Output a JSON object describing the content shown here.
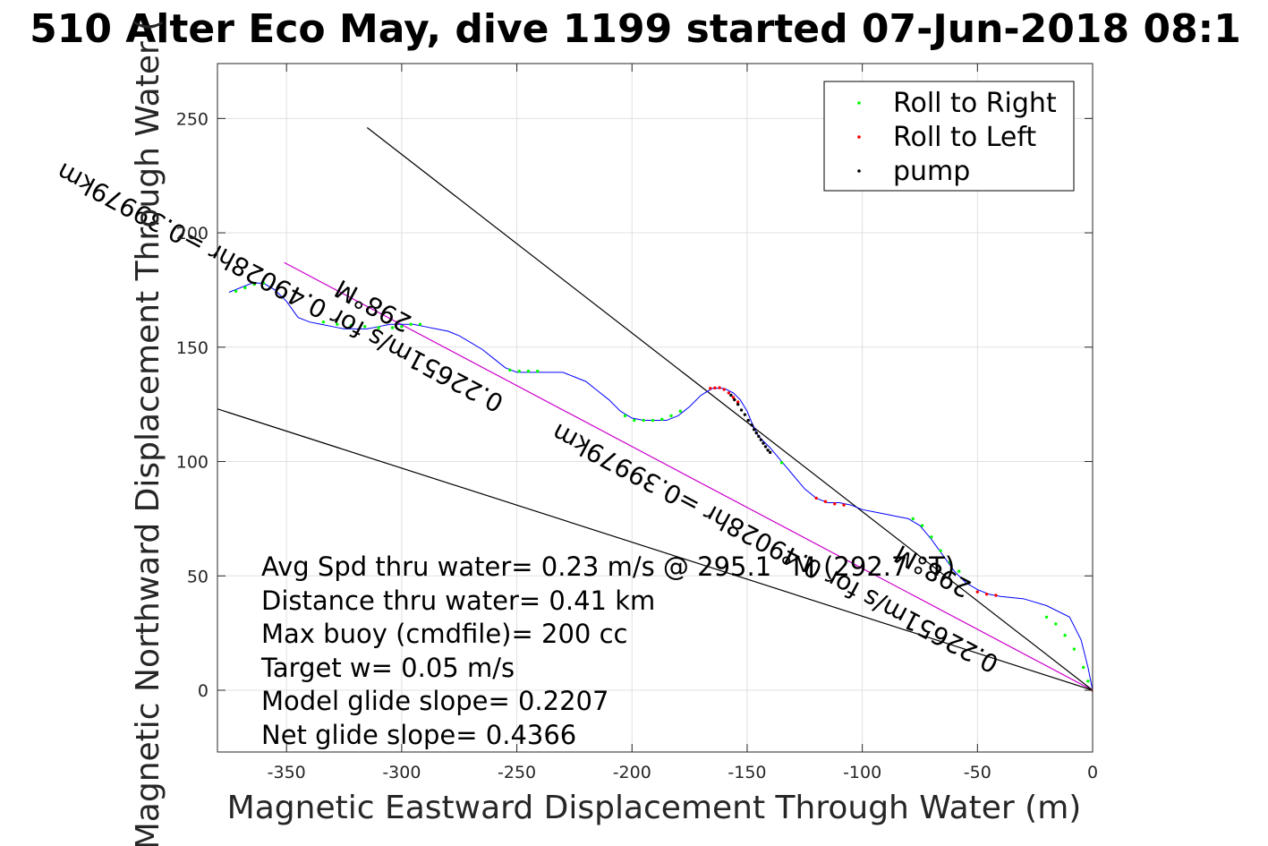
{
  "chart_data": {
    "type": "line",
    "title": "510 Alter Eco May, dive 1199 started 07-Jun-2018 08:1",
    "xlabel": "Magnetic Eastward Displacement Through Water (m)",
    "ylabel": "Magnetic Northward Displacement Through Water (",
    "xlim": [
      -380,
      0
    ],
    "ylim": [
      -27,
      274
    ],
    "xticks": [
      -350,
      -300,
      -250,
      -200,
      -150,
      -100,
      -50,
      0
    ],
    "yticks": [
      0,
      50,
      100,
      150,
      200,
      250
    ],
    "grid": true,
    "legend_position": "top-right",
    "legend": [
      {
        "name": "Roll to Right",
        "color": "#00ff00"
      },
      {
        "name": "Roll to Left",
        "color": "#ff0000"
      },
      {
        "name": "pump",
        "color": "#000000"
      }
    ],
    "track": {
      "color": "#0000ff",
      "x": [
        0,
        -2,
        -5,
        -10,
        -20,
        -30,
        -40,
        -45,
        -50,
        -55,
        -60,
        -65,
        -70,
        -75,
        -80,
        -85,
        -90,
        -95,
        -100,
        -105,
        -110,
        -115,
        -120,
        -125,
        -130,
        -135,
        -140,
        -145,
        -148,
        -150,
        -153,
        -156,
        -160,
        -165,
        -170,
        -175,
        -180,
        -185,
        -190,
        -195,
        -200,
        -205,
        -210,
        -215,
        -220,
        -225,
        -230,
        -235,
        -240,
        -245,
        -250,
        -255,
        -260,
        -265,
        -270,
        -275,
        -280,
        -285,
        -290,
        -295,
        -300,
        -305,
        -310,
        -315,
        -320,
        -325,
        -330,
        -335,
        -340,
        -345,
        -350,
        -355,
        -360,
        -365,
        -370,
        -375
      ],
      "y": [
        0,
        10,
        22,
        32,
        37,
        40,
        41,
        42,
        44,
        47,
        52,
        59,
        66,
        72,
        75,
        76,
        77,
        78,
        79,
        81,
        82,
        82,
        84,
        88,
        94,
        100,
        106,
        111,
        117,
        122,
        127,
        130,
        132,
        132,
        129,
        124,
        120,
        118,
        118,
        118,
        119,
        122,
        127,
        131,
        135,
        137,
        139,
        139,
        139,
        139,
        139,
        141,
        145,
        149,
        152,
        155,
        157,
        158,
        159,
        160,
        160,
        160,
        159,
        158,
        158,
        158,
        159,
        160,
        161,
        163,
        170,
        175,
        178,
        178,
        176,
        174
      ]
    },
    "markers": {
      "roll_right": {
        "x": [
          -372,
          -368,
          -364,
          -360,
          -334,
          -328,
          -322,
          -316,
          -310,
          -304,
          -300,
          -296,
          -292,
          -253,
          -249,
          -245,
          -241,
          -203,
          -199,
          -195,
          -191,
          -187,
          -183,
          -179,
          -135,
          -78,
          -74,
          -70,
          -66,
          -62,
          -58,
          -54,
          -20,
          -16,
          -12,
          -8,
          -4,
          -2
        ],
        "y": [
          174.5,
          176,
          177.5,
          178,
          161,
          160,
          159.5,
          159,
          158.5,
          158.5,
          159,
          160,
          160,
          140,
          139.5,
          139.5,
          139.5,
          120,
          118,
          118,
          118,
          118.5,
          120,
          122,
          99.5,
          75,
          72,
          67,
          61,
          56,
          52,
          47,
          32,
          29,
          24,
          18,
          10,
          4
        ]
      },
      "roll_left": {
        "x": [
          -166,
          -164,
          -162,
          -160,
          -158,
          -156,
          -154,
          -120,
          -116,
          -112,
          -108,
          -50,
          -46,
          -42,
          0
        ],
        "y": [
          132,
          132.2,
          132.3,
          131.5,
          130,
          128,
          126,
          84,
          82.5,
          81.5,
          81,
          43,
          42,
          41.5,
          0
        ]
      },
      "pump": {
        "x": [
          -157,
          -155.5,
          -154,
          -152.5,
          -151,
          -149.5,
          -148,
          -147,
          -146,
          -145,
          -144,
          -143,
          -142,
          -141,
          -140
        ],
        "y": [
          129,
          127,
          125,
          122.5,
          120.5,
          118,
          116,
          114,
          112.5,
          111,
          109.5,
          108,
          106.5,
          105,
          104
        ]
      }
    },
    "reference_lines": [
      {
        "name": "net_track",
        "color": "#cc00cc",
        "x": [
          -351,
          0
        ],
        "y": [
          187,
          0
        ]
      },
      {
        "name": "line_a",
        "color": "#000000",
        "x": [
          -315,
          0
        ],
        "y": [
          246,
          0
        ]
      },
      {
        "name": "line_b",
        "color": "#000000",
        "x": [
          -380,
          0
        ],
        "y": [
          123,
          0
        ]
      }
    ],
    "rotated_labels": [
      {
        "text": "298°M",
        "x": -295,
        "y": 163,
        "angle": 208
      },
      {
        "text": "0.22651m/s for 0.49028hr =0.39979km",
        "x": -255,
        "y": 128,
        "angle": 208
      },
      {
        "text": "298°M",
        "x": -52,
        "y": 47,
        "angle": 208
      },
      {
        "text": "0.22651m/s for 0.49028hr =0.39979km",
        "x": -40,
        "y": 14,
        "angle": 208
      }
    ],
    "annotations": [
      "Avg Spd thru water=  0.23 m/s @ 295.1 °M (292.7 °T)",
      "Distance thru water=  0.41 km",
      "Max buoy (cmdfile)= 200 cc",
      "Target w= 0.05 m/s",
      "Model glide slope= 0.2207",
      "Net glide slope= 0.4366"
    ]
  }
}
